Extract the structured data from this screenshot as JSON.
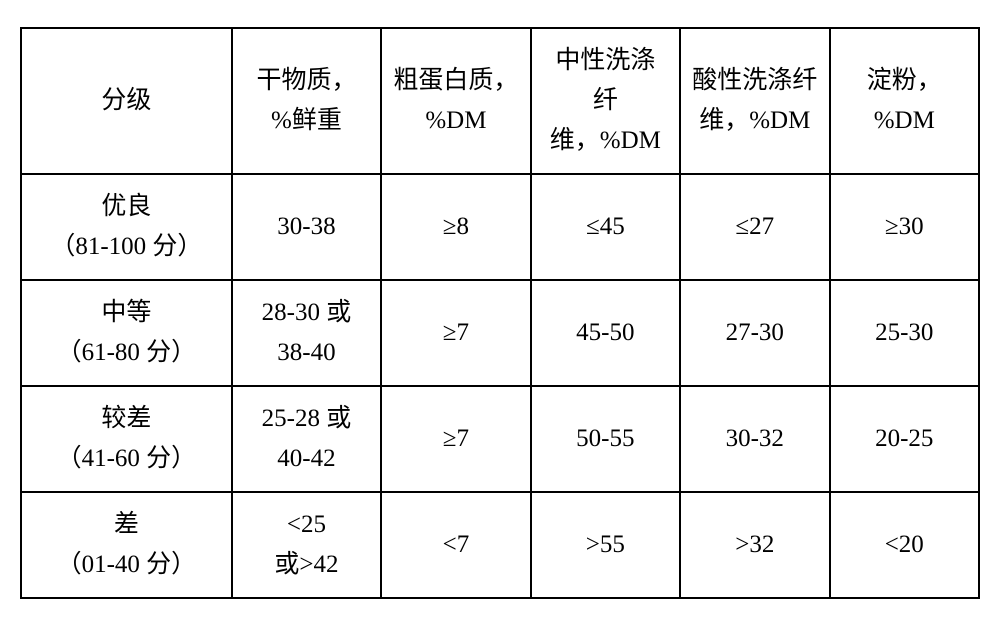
{
  "table": {
    "type": "table",
    "border_color": "#000000",
    "background_color": "#ffffff",
    "text_color": "#000000",
    "font_size_pt": 19,
    "column_widths_pct": [
      22,
      15.6,
      15.6,
      15.6,
      15.6,
      15.6
    ],
    "columns": [
      "分级",
      "干物质，%鲜重",
      "粗蛋白质，%DM",
      "中性洗涤纤维，%DM",
      "酸性洗涤纤维，%DM",
      "淀粉，%DM"
    ],
    "header": {
      "c1": "分级",
      "c2_l1": "干物质，",
      "c2_l2": "%鲜重",
      "c3_l1": "粗蛋白质，",
      "c3_l2": "%DM",
      "c4_l1": "中性洗涤",
      "c4_l2": "纤",
      "c4_l3": "维，%DM",
      "c5_l1": "酸性洗涤纤",
      "c5_l2": "维，%DM",
      "c6_l1": "淀粉，",
      "c6_l2": "%DM"
    },
    "rows": [
      {
        "grade_l1": "优良",
        "grade_l2": "（81-100 分）",
        "dm": "30-38",
        "cp": "≥8",
        "ndf": "≤45",
        "adf": "≤27",
        "starch": "≥30"
      },
      {
        "grade_l1": "中等",
        "grade_l2": "（61-80 分）",
        "dm": "28-30 或 38-40",
        "dm_l1": "28-30 或",
        "dm_l2": "38-40",
        "cp": "≥7",
        "ndf": "45-50",
        "adf": "27-30",
        "starch": "25-30"
      },
      {
        "grade_l1": "较差",
        "grade_l2": "（41-60 分）",
        "dm": "25-28 或 40-42",
        "dm_l1": "25-28 或",
        "dm_l2": "40-42",
        "cp": "≥7",
        "ndf": "50-55",
        "adf": "30-32",
        "starch": "20-25"
      },
      {
        "grade_l1": "差",
        "grade_l2": "（01-40 分）",
        "dm": "<25 或>42",
        "dm_l1": "<25",
        "dm_l2": "或>42",
        "cp": "<7",
        "ndf": ">55",
        "adf": ">32",
        "starch": "<20"
      }
    ]
  }
}
